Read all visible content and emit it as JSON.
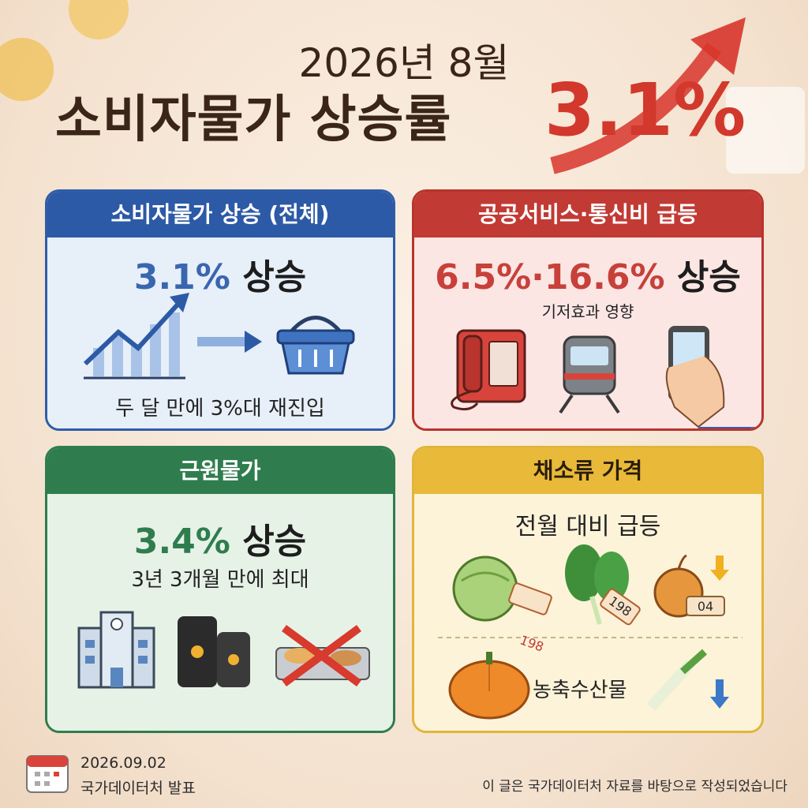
{
  "header": {
    "year_month": "2026년 8월",
    "title_prefix": "소비자물가 상승률",
    "title_value": "3.1%"
  },
  "cards": [
    {
      "title": "소비자물가 상승 (전체)",
      "headline_value": "3.1%",
      "headline_suffix": "상승",
      "caption": "두 달 만에 3%대 재진입"
    },
    {
      "title": "공공서비스·통신비 급등",
      "headline_value": "6.5%·16.6%",
      "headline_suffix": "상승",
      "caption": "기저효과 영향"
    },
    {
      "title": "근원물가",
      "headline_value": "3.4%",
      "headline_suffix": "상승",
      "caption": "3년 3개월 만에 최대"
    },
    {
      "title": "채소류 가격",
      "caption": "전월 대비 급등",
      "price_tags": [
        "198",
        "198",
        "04"
      ],
      "label": "농축수산물"
    }
  ],
  "footer": {
    "date": "2026.09.02",
    "source": "국가데이터처 발표",
    "note": "이 글은 국가데이터처 자료를 바탕으로 작성되었습니다"
  }
}
